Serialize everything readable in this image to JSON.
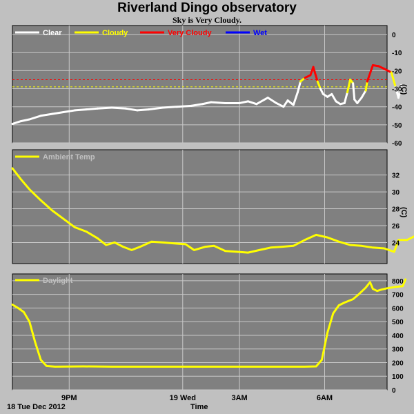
{
  "header": {
    "title": "Riverland Dingo observatory",
    "subtitle": "Sky is Very Cloudy."
  },
  "footer": {
    "date_label": "18 Tue Dec 2012",
    "xlabel": "Time"
  },
  "colors": {
    "panel_bg": "#808080",
    "grid": "#c8c8c8",
    "clear": "#ffffff",
    "cloudy": "#ffff00",
    "very_cloudy": "#ff0000",
    "wet": "#0000ff"
  },
  "chart_data": [
    {
      "type": "line",
      "name": "sky",
      "ylabel": "(C)",
      "ylim": [
        -60,
        5
      ],
      "yticks": [
        0,
        -10,
        -20,
        -30,
        -40,
        -50,
        -60
      ],
      "x_range_hours": [
        19.0,
        32.2
      ],
      "xticks": [
        {
          "label": "9PM",
          "hour": 21
        },
        {
          "label": "19 Wed",
          "hour": 25
        },
        {
          "label": "3AM",
          "hour": 27
        },
        {
          "label": "6AM",
          "hour": 30
        }
      ],
      "legend": [
        {
          "label": "Clear",
          "color": "#ffffff"
        },
        {
          "label": "Cloudy",
          "color": "#ffff00"
        },
        {
          "label": "Very Cloudy",
          "color": "#ff0000"
        },
        {
          "label": "Wet",
          "color": "#0000ff"
        }
      ],
      "thresholds": [
        {
          "value": -25,
          "color": "#ff0000"
        },
        {
          "value": -29,
          "color": "#ffff00"
        }
      ],
      "series_points": [
        [
          19.0,
          -49.5
        ],
        [
          19.3,
          -48.0
        ],
        [
          19.6,
          -47.0
        ],
        [
          20.0,
          -45.0
        ],
        [
          20.4,
          -44.0
        ],
        [
          20.8,
          -43.0
        ],
        [
          21.2,
          -42.0
        ],
        [
          21.6,
          -41.5
        ],
        [
          22.0,
          -41.0
        ],
        [
          22.5,
          -40.5
        ],
        [
          23.0,
          -41.0
        ],
        [
          23.4,
          -42.0
        ],
        [
          23.8,
          -41.5
        ],
        [
          24.3,
          -40.5
        ],
        [
          24.8,
          -40.0
        ],
        [
          25.3,
          -39.5
        ],
        [
          25.7,
          -38.5
        ],
        [
          26.0,
          -37.5
        ],
        [
          26.5,
          -38.0
        ],
        [
          27.0,
          -38.0
        ],
        [
          27.3,
          -37.0
        ],
        [
          27.6,
          -38.5
        ],
        [
          28.0,
          -35.0
        ],
        [
          28.3,
          -38.0
        ],
        [
          28.55,
          -40.0
        ],
        [
          28.7,
          -36.5
        ],
        [
          28.9,
          -39.0
        ],
        [
          29.05,
          -32.0
        ],
        [
          29.15,
          -26.0
        ],
        [
          29.3,
          -24.0
        ],
        [
          29.5,
          -22.5
        ],
        [
          29.6,
          -18.0
        ],
        [
          29.75,
          -26.0
        ],
        [
          29.85,
          -30.0
        ],
        [
          29.95,
          -33.0
        ],
        [
          30.1,
          -34.5
        ],
        [
          30.25,
          -33.0
        ],
        [
          30.4,
          -37.0
        ],
        [
          30.55,
          -38.5
        ],
        [
          30.7,
          -38.0
        ],
        [
          30.8,
          -32.0
        ],
        [
          30.9,
          -25.0
        ],
        [
          31.0,
          -27.0
        ],
        [
          31.05,
          -36.0
        ],
        [
          31.15,
          -38.0
        ],
        [
          31.3,
          -35.0
        ],
        [
          31.45,
          -31.0
        ],
        [
          31.5,
          -26.0
        ],
        [
          31.7,
          -17.0
        ],
        [
          31.9,
          -17.5
        ],
        [
          32.1,
          -19.0
        ],
        [
          32.35,
          -21.0
        ],
        [
          32.5,
          -29.0
        ],
        [
          32.6,
          -35.0
        ],
        [
          32.7,
          -28.0
        ]
      ]
    },
    {
      "type": "line",
      "name": "ambient",
      "ylabel": "(C)",
      "ylim": [
        21.5,
        35
      ],
      "yticks": [
        32,
        30,
        28,
        26,
        24
      ],
      "legend": [
        {
          "label": "Ambient Temp",
          "color": "#ffff00"
        }
      ],
      "series_points": [
        [
          19.0,
          32.8
        ],
        [
          19.3,
          31.5
        ],
        [
          19.6,
          30.3
        ],
        [
          20.0,
          29.0
        ],
        [
          20.4,
          27.8
        ],
        [
          20.8,
          26.8
        ],
        [
          21.2,
          25.8
        ],
        [
          21.6,
          25.3
        ],
        [
          22.0,
          24.5
        ],
        [
          22.3,
          23.7
        ],
        [
          22.6,
          24.0
        ],
        [
          22.9,
          23.5
        ],
        [
          23.2,
          23.1
        ],
        [
          23.5,
          23.5
        ],
        [
          23.9,
          24.1
        ],
        [
          24.3,
          24.0
        ],
        [
          24.7,
          23.9
        ],
        [
          25.1,
          23.8
        ],
        [
          25.4,
          23.1
        ],
        [
          25.8,
          23.5
        ],
        [
          26.1,
          23.6
        ],
        [
          26.5,
          23.0
        ],
        [
          26.9,
          22.9
        ],
        [
          27.3,
          22.8
        ],
        [
          27.7,
          23.1
        ],
        [
          28.1,
          23.4
        ],
        [
          28.5,
          23.5
        ],
        [
          28.9,
          23.6
        ],
        [
          29.3,
          24.3
        ],
        [
          29.7,
          24.9
        ],
        [
          30.1,
          24.6
        ],
        [
          30.5,
          24.1
        ],
        [
          30.9,
          23.7
        ],
        [
          31.3,
          23.6
        ],
        [
          31.7,
          23.4
        ],
        [
          32.1,
          23.3
        ],
        [
          32.45,
          22.9
        ],
        [
          32.6,
          24.3
        ],
        [
          32.9,
          24.3
        ],
        [
          33.2,
          24.8
        ],
        [
          33.45,
          25.5
        ]
      ]
    },
    {
      "type": "line",
      "name": "daylight",
      "ylim": [
        0,
        850
      ],
      "yticks": [
        800,
        700,
        600,
        500,
        400,
        300,
        200,
        100,
        0
      ],
      "legend": [
        {
          "label": "Daylight",
          "color": "#ffff00"
        }
      ],
      "series_points": [
        [
          19.0,
          625
        ],
        [
          19.2,
          600
        ],
        [
          19.4,
          570
        ],
        [
          19.6,
          500
        ],
        [
          19.8,
          350
        ],
        [
          20.0,
          220
        ],
        [
          20.2,
          175
        ],
        [
          20.5,
          170
        ],
        [
          21.5,
          172
        ],
        [
          22.5,
          170
        ],
        [
          23.5,
          170
        ],
        [
          24.5,
          170
        ],
        [
          25.5,
          170
        ],
        [
          26.5,
          170
        ],
        [
          27.5,
          170
        ],
        [
          28.5,
          170
        ],
        [
          29.3,
          170
        ],
        [
          29.7,
          172
        ],
        [
          29.9,
          220
        ],
        [
          30.1,
          420
        ],
        [
          30.3,
          560
        ],
        [
          30.5,
          620
        ],
        [
          30.7,
          640
        ],
        [
          31.0,
          665
        ],
        [
          31.2,
          700
        ],
        [
          31.45,
          750
        ],
        [
          31.6,
          790
        ],
        [
          31.7,
          740
        ],
        [
          31.85,
          725
        ],
        [
          32.0,
          735
        ],
        [
          32.2,
          745
        ],
        [
          32.5,
          755
        ],
        [
          32.75,
          760
        ],
        [
          32.85,
          810
        ]
      ]
    }
  ]
}
